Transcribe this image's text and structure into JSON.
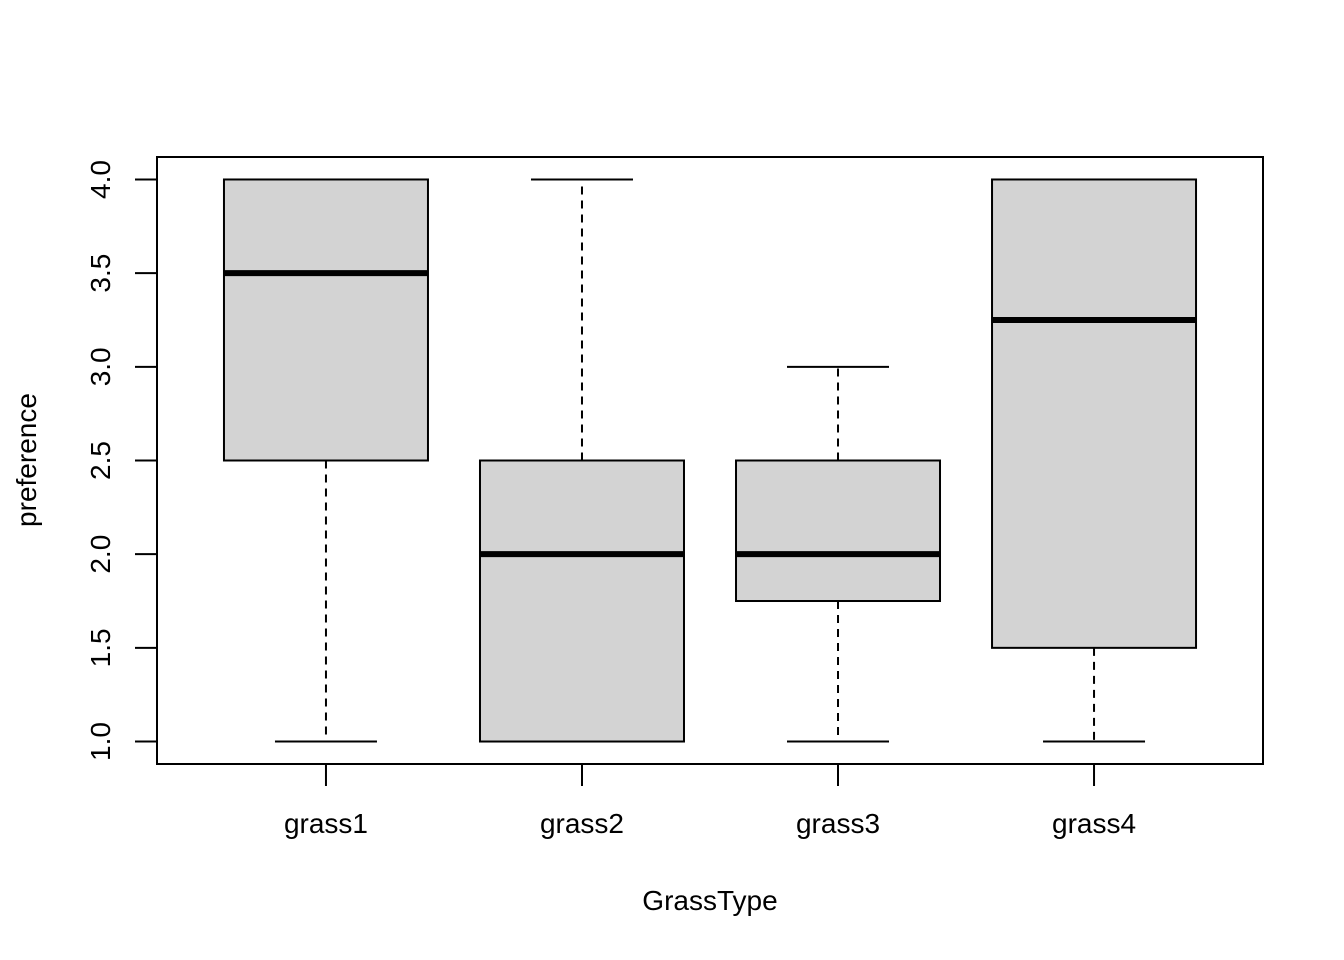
{
  "chart_data": {
    "type": "boxplot",
    "title": "",
    "xlabel": "GrassType",
    "ylabel": "preference",
    "ylim": [
      0.88,
      4.12
    ],
    "yticks": [
      "1.0",
      "1.5",
      "2.0",
      "2.5",
      "3.0",
      "3.5",
      "4.0"
    ],
    "categories": [
      "grass1",
      "grass2",
      "grass3",
      "grass4"
    ],
    "boxes": [
      {
        "name": "grass1",
        "whisker_low": 1.0,
        "q1": 2.5,
        "median": 3.5,
        "q3": 4.0,
        "whisker_high": 4.0
      },
      {
        "name": "grass2",
        "whisker_low": 1.0,
        "q1": 1.0,
        "median": 2.0,
        "q3": 2.5,
        "whisker_high": 4.0
      },
      {
        "name": "grass3",
        "whisker_low": 1.0,
        "q1": 1.75,
        "median": 2.0,
        "q3": 2.5,
        "whisker_high": 3.0
      },
      {
        "name": "grass4",
        "whisker_low": 1.0,
        "q1": 1.5,
        "median": 3.25,
        "q3": 4.0,
        "whisker_high": 4.0
      }
    ],
    "box_fill": "#d3d3d3",
    "grid": false,
    "legend": "none"
  }
}
